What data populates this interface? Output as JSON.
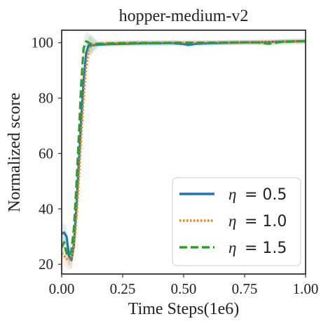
{
  "chart_data": {
    "type": "line",
    "title": "hopper-medium-v2",
    "xlabel": "Time Steps(1e6)",
    "ylabel": "Normalized score",
    "xlim": [
      0.0,
      1.0
    ],
    "ylim": [
      16.5,
      104.5
    ],
    "xticks": [
      "0.00",
      "0.25",
      "0.50",
      "0.75",
      "1.00"
    ],
    "yticks": [
      "20",
      "40",
      "60",
      "80",
      "100"
    ],
    "grid": false,
    "legend_position": "lower-right",
    "series": [
      {
        "name": "η = 0.5",
        "name_symbol": "η",
        "name_value": "= 0.5",
        "color": "#1f77b4",
        "style": "solid",
        "x": [
          0.0,
          0.01,
          0.02,
          0.03,
          0.04,
          0.05,
          0.06,
          0.07,
          0.08,
          0.09,
          0.1,
          0.11,
          0.12,
          0.15,
          0.2,
          0.25,
          0.3,
          0.35,
          0.4,
          0.45,
          0.5,
          0.52,
          0.55,
          0.6,
          0.65,
          0.7,
          0.75,
          0.8,
          0.85,
          0.9,
          0.95,
          1.0
        ],
        "y": [
          31,
          31.5,
          30,
          23,
          21.5,
          27,
          40,
          56,
          72,
          86,
          96,
          99,
          99,
          99.3,
          99.5,
          99.6,
          99.7,
          99.8,
          99.8,
          99.9,
          99.5,
          99.2,
          99.6,
          99.8,
          99.9,
          100.0,
          100.1,
          100.1,
          100.3,
          100.4,
          100.5,
          100.5
        ]
      },
      {
        "name": "η = 1.0",
        "name_symbol": "η",
        "name_value": "= 1.0",
        "color": "#ff7f0e",
        "style": "dotted",
        "x": [
          0.0,
          0.01,
          0.02,
          0.03,
          0.04,
          0.05,
          0.06,
          0.07,
          0.08,
          0.09,
          0.1,
          0.11,
          0.12,
          0.13,
          0.15,
          0.2,
          0.25,
          0.3,
          0.4,
          0.5,
          0.6,
          0.7,
          0.8,
          0.9,
          1.0
        ],
        "y": [
          24,
          23,
          22,
          21.5,
          22,
          26,
          36,
          50,
          66,
          80,
          91,
          97,
          99,
          99.4,
          99.6,
          99.8,
          99.9,
          100.0,
          100.0,
          100.0,
          100.0,
          100.0,
          100.2,
          100.4,
          100.5
        ]
      },
      {
        "name": "η = 1.5",
        "name_symbol": "η",
        "name_value": "= 1.5",
        "color": "#2ca02c",
        "style": "dashed",
        "x": [
          0.0,
          0.01,
          0.02,
          0.03,
          0.04,
          0.05,
          0.06,
          0.07,
          0.08,
          0.09,
          0.1,
          0.11,
          0.12,
          0.15,
          0.2,
          0.25,
          0.3,
          0.4,
          0.5,
          0.6,
          0.7,
          0.8,
          0.85,
          0.9,
          1.0
        ],
        "y": [
          26,
          28,
          24,
          23,
          25,
          33,
          48,
          66,
          85,
          98,
          100.5,
          100,
          99.5,
          99.6,
          99.7,
          99.8,
          99.9,
          99.9,
          100.0,
          100.0,
          100.1,
          100.1,
          99.6,
          100.3,
          100.6
        ]
      }
    ]
  }
}
